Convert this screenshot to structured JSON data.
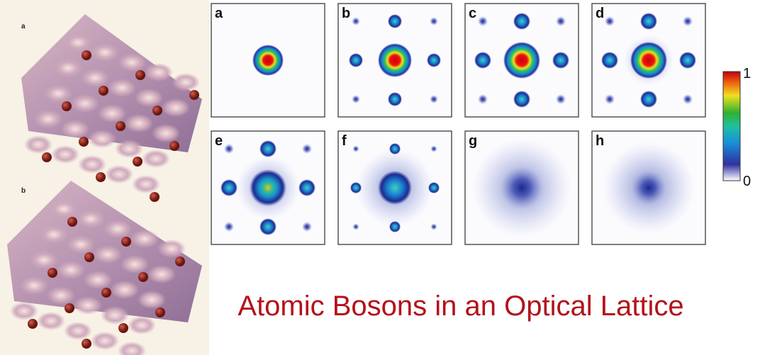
{
  "left_panel": {
    "labels": [
      "a",
      "b"
    ]
  },
  "panels": [
    {
      "label": "a"
    },
    {
      "label": "b"
    },
    {
      "label": "c"
    },
    {
      "label": "d"
    },
    {
      "label": "e"
    },
    {
      "label": "f"
    },
    {
      "label": "g"
    },
    {
      "label": "h"
    }
  ],
  "colorbar": {
    "max_label": "1",
    "min_label": "0"
  },
  "title": "Atomic Bosons in an Optical Lattice"
}
